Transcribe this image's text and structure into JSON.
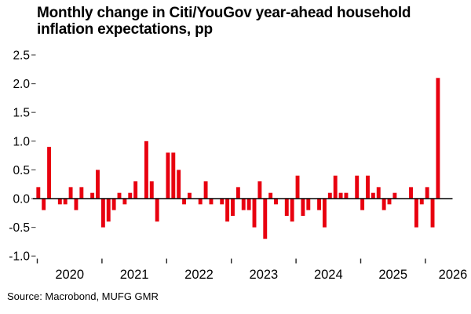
{
  "title": {
    "line1": "Monthly change in Citi/YouGov year-ahead household",
    "line2": "inflation expectations, pp"
  },
  "footer": {
    "source": "Source: Macrobond, MUFG GMR"
  },
  "chart_data": {
    "type": "bar",
    "title": "Monthly change in Citi/YouGov year-ahead household inflation expectations, pp",
    "xlabel": "",
    "ylabel": "pp",
    "ylim": [
      -1.0,
      2.5
    ],
    "grid": false,
    "legend": "none",
    "bar_color": "#e8000f",
    "axis_color": "#000000",
    "tick_color": "#555555",
    "y_tick_values": [
      2.5,
      2.0,
      1.5,
      1.0,
      0.5,
      0.0,
      -0.5,
      -1.0
    ],
    "y_tick_labels": [
      "2.5",
      "2.0",
      "1.5",
      "1.0",
      "0.5",
      "0.0",
      "-0.5",
      "-1.0"
    ],
    "x_tick_years": [
      "2020",
      "2021",
      "2022",
      "2023",
      "2024",
      "2025",
      "2026"
    ],
    "frequency": "monthly",
    "series": [
      {
        "year": "2020",
        "values": [
          0.2,
          -0.2,
          0.9,
          0.0,
          -0.1,
          -0.1,
          0.2,
          -0.2,
          0.2,
          0.0,
          0.1,
          0.5
        ]
      },
      {
        "year": "2021",
        "values": [
          -0.5,
          -0.4,
          -0.2,
          0.1,
          -0.1,
          0.1,
          0.3,
          0.0,
          1.0,
          0.3,
          -0.4,
          0.0
        ]
      },
      {
        "year": "2022",
        "values": [
          0.8,
          0.8,
          0.5,
          -0.1,
          0.1,
          0.0,
          -0.1,
          0.3,
          -0.1,
          0.0,
          -0.1,
          -0.4
        ]
      },
      {
        "year": "2023",
        "values": [
          -0.3,
          0.2,
          -0.2,
          -0.2,
          -0.5,
          0.3,
          -0.7,
          0.1,
          -0.1,
          0.0,
          -0.3,
          -0.4
        ]
      },
      {
        "year": "2024",
        "values": [
          0.4,
          -0.3,
          -0.2,
          0.0,
          -0.2,
          -0.5,
          0.1,
          0.4,
          0.1,
          0.1,
          0.0,
          0.4
        ]
      },
      {
        "year": "2025",
        "values": [
          -0.2,
          0.4,
          0.1,
          0.2,
          -0.2,
          -0.1,
          0.1,
          0.0,
          0.0,
          0.2,
          -0.5,
          -0.1
        ]
      },
      {
        "year": "2026",
        "values": [
          0.2,
          -0.5,
          2.1
        ]
      }
    ]
  }
}
